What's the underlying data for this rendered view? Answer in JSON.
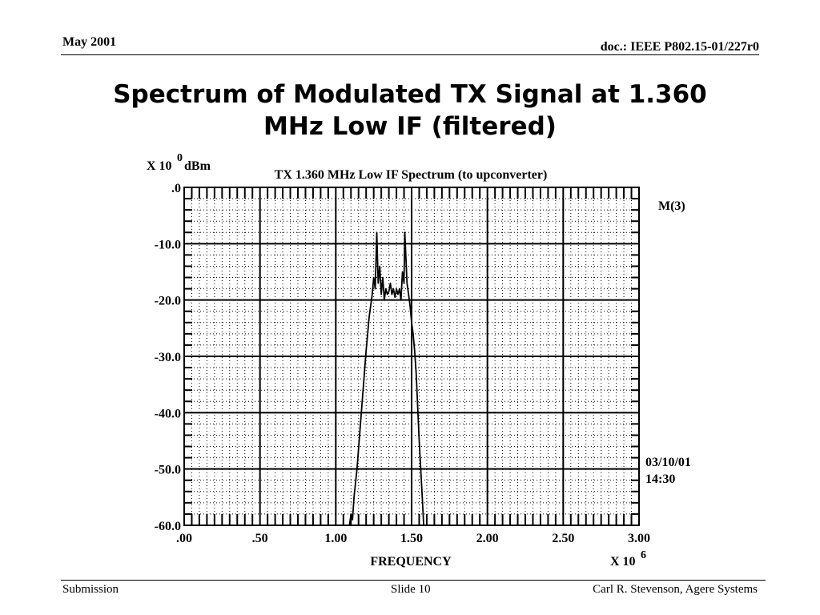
{
  "slide": {
    "header_left": "May 2001",
    "header_right": "doc.: IEEE P802.15-01/227r0",
    "title_line1": "Spectrum of Modulated TX Signal at 1.360",
    "title_line2": "MHz Low IF (filtered)",
    "footer_left": "Submission",
    "footer_center": "Slide 10",
    "footer_right": "Carl R. Stevenson, Agere Systems"
  },
  "chart_data": {
    "type": "line",
    "title": "TX 1.360 MHz Low IF Spectrum (to upconverter)",
    "xlabel": "FREQUENCY",
    "x_multiplier": "X 10",
    "x_multiplier_exp": "6",
    "ylabel": "dBm",
    "y_multiplier": "X 10",
    "y_multiplier_exp": "0",
    "marker_label": "M(3)",
    "date": "03/10/01",
    "time": "14:30",
    "xlim": [
      0,
      3.0
    ],
    "ylim": [
      -60,
      0
    ],
    "x_ticks": [
      ".00",
      ".50",
      "1.00",
      "1.50",
      "2.00",
      "2.50",
      "3.00"
    ],
    "y_ticks": [
      ".0",
      "-10.0",
      "-20.0",
      "-30.0",
      "-40.0",
      "-50.0",
      "-60.0"
    ],
    "grid": true,
    "series": [
      {
        "color": "#000000",
        "points": [
          [
            1.09,
            -60
          ],
          [
            1.1,
            -58
          ],
          [
            1.11,
            -59
          ],
          [
            1.12,
            -55
          ],
          [
            1.14,
            -50
          ],
          [
            1.16,
            -43
          ],
          [
            1.18,
            -36
          ],
          [
            1.2,
            -29
          ],
          [
            1.22,
            -23
          ],
          [
            1.24,
            -19
          ],
          [
            1.25,
            -16
          ],
          [
            1.26,
            -18
          ],
          [
            1.27,
            -8
          ],
          [
            1.28,
            -17
          ],
          [
            1.29,
            -14
          ],
          [
            1.3,
            -19
          ],
          [
            1.31,
            -16
          ],
          [
            1.32,
            -20
          ],
          [
            1.33,
            -18
          ],
          [
            1.34,
            -19
          ],
          [
            1.35,
            -18.5
          ],
          [
            1.36,
            -17
          ],
          [
            1.37,
            -19
          ],
          [
            1.38,
            -18
          ],
          [
            1.39,
            -19.5
          ],
          [
            1.4,
            -18
          ],
          [
            1.41,
            -19
          ],
          [
            1.42,
            -18
          ],
          [
            1.43,
            -20
          ],
          [
            1.44,
            -15
          ],
          [
            1.45,
            -17
          ],
          [
            1.455,
            -8
          ],
          [
            1.47,
            -17
          ],
          [
            1.48,
            -19
          ],
          [
            1.49,
            -21
          ],
          [
            1.5,
            -24
          ],
          [
            1.51,
            -26
          ],
          [
            1.52,
            -29
          ],
          [
            1.53,
            -33
          ],
          [
            1.54,
            -39
          ],
          [
            1.55,
            -45
          ],
          [
            1.56,
            -50
          ],
          [
            1.57,
            -55
          ],
          [
            1.58,
            -60
          ]
        ]
      }
    ]
  }
}
